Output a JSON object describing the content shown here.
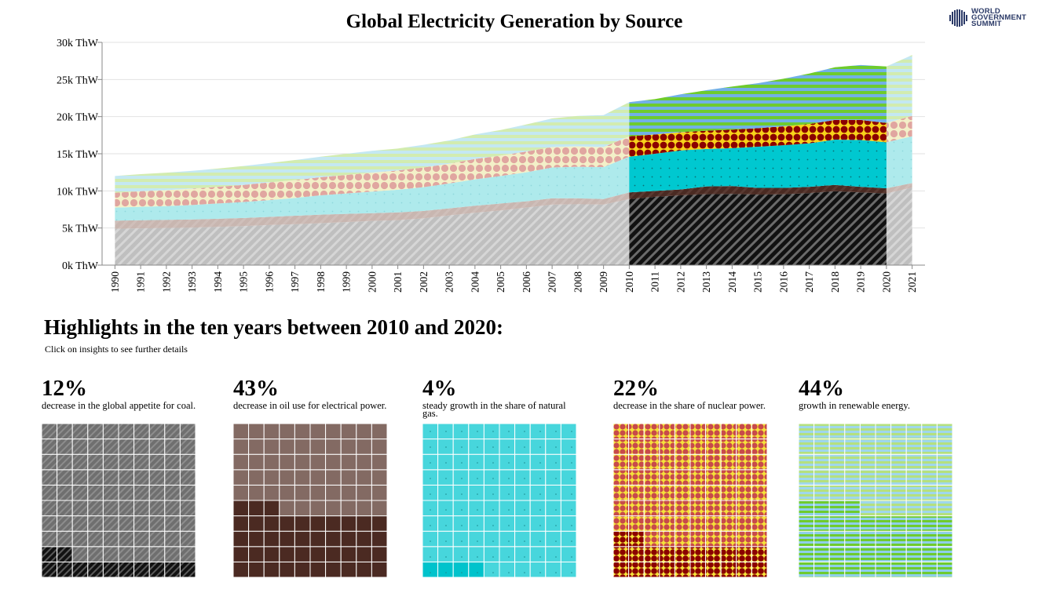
{
  "logo": {
    "lines": [
      "WORLD",
      "GOVERNMENT",
      "SUMMIT"
    ]
  },
  "chart_data": {
    "type": "area",
    "title": "Global Electricity Generation by Source",
    "x": [
      1990,
      1991,
      1992,
      1993,
      1994,
      1995,
      1996,
      1997,
      1998,
      1999,
      2000,
      2001,
      2002,
      2003,
      2004,
      2005,
      2006,
      2007,
      2008,
      2009,
      2010,
      2011,
      2012,
      2013,
      2014,
      2015,
      2016,
      2017,
      2018,
      2019,
      2020,
      2021
    ],
    "y_ticks": [
      "0k ThW",
      "5k ThW",
      "10k ThW",
      "15k ThW",
      "20k ThW",
      "25k ThW",
      "30k ThW"
    ],
    "ylim": [
      0,
      30000
    ],
    "highlight_range": [
      2010,
      2020
    ],
    "grid": true,
    "series": [
      {
        "name": "Coal",
        "color": "#bfbfbf",
        "highlight_color": "#111111",
        "values": [
          4900,
          4950,
          5000,
          5050,
          5150,
          5250,
          5400,
          5500,
          5650,
          5800,
          5950,
          6050,
          6300,
          6700,
          7050,
          7350,
          7750,
          8150,
          8200,
          8150,
          8900,
          9200,
          9400,
          9550,
          9600,
          9500,
          9550,
          9700,
          9950,
          9800,
          9650,
          10450
        ]
      },
      {
        "name": "Oil",
        "color": "#c8b6b0",
        "highlight_color": "#4a2a22",
        "values": [
          1100,
          1100,
          1100,
          1100,
          1100,
          1100,
          1100,
          1150,
          1150,
          1100,
          1050,
          1050,
          1000,
          950,
          950,
          950,
          850,
          850,
          800,
          750,
          900,
          800,
          800,
          1050,
          1050,
          900,
          850,
          850,
          850,
          750,
          700,
          600
        ]
      },
      {
        "name": "Natural Gas",
        "color": "#aeeaec",
        "highlight_color": "#00c8d0",
        "values": [
          1750,
          1800,
          1850,
          1950,
          2050,
          2150,
          2250,
          2400,
          2600,
          2750,
          2900,
          3050,
          3200,
          3350,
          3550,
          3700,
          3900,
          4150,
          4250,
          4300,
          4800,
          5000,
          5250,
          5050,
          5100,
          5550,
          5750,
          5850,
          6100,
          6300,
          6200,
          6300
        ]
      },
      {
        "name": "Nuclear",
        "color": "#e8c4c0",
        "highlight_color": "#8b0000",
        "values": [
          2000,
          2100,
          2150,
          2200,
          2250,
          2300,
          2400,
          2400,
          2450,
          2500,
          2550,
          2600,
          2650,
          2650,
          2750,
          2750,
          2800,
          2750,
          2750,
          2700,
          2750,
          2600,
          2450,
          2450,
          2500,
          2500,
          2550,
          2600,
          2650,
          2700,
          2600,
          2750
        ]
      },
      {
        "name": "Renewables",
        "color": "#cfeaa0",
        "highlight_color": "#6ecb2e",
        "values": [
          2250,
          2300,
          2350,
          2400,
          2450,
          2550,
          2600,
          2700,
          2750,
          2850,
          2950,
          2950,
          3050,
          3150,
          3300,
          3450,
          3650,
          3850,
          4100,
          4300,
          4600,
          4750,
          5100,
          5450,
          5800,
          6050,
          6400,
          6800,
          7100,
          7400,
          7600,
          8200
        ]
      }
    ]
  },
  "highlights": {
    "title": "Highlights in the ten years between 2010 and 2020:",
    "subtitle": "Click on insights to see further details",
    "insights": [
      {
        "value": "12%",
        "description": "decrease in the global appetite for coal.",
        "series": "Coal",
        "waffle_filled": 12,
        "base": "#6f6f6f",
        "filled": "#1a1a1a"
      },
      {
        "value": "43%",
        "description": "decrease in oil use for electrical power.",
        "series": "Oil",
        "waffle_filled": 43,
        "base": "#836a63",
        "filled": "#4b2a22"
      },
      {
        "value": "4%",
        "description": "steady growth in the share of natural gas.",
        "series": "Natural Gas",
        "waffle_filled": 4,
        "base": "#47d6dc",
        "filled": "#00c3cc"
      },
      {
        "value": "22%",
        "description": "decrease in the share of nuclear power.",
        "series": "Nuclear",
        "waffle_filled": 22,
        "base": "#c84a4a",
        "filled": "#8b0000"
      },
      {
        "value": "44%",
        "description": "growth in renewable energy.",
        "series": "Renewables",
        "waffle_filled": 44,
        "base": "#9fd7ec",
        "filled": "#6ecb2e"
      }
    ]
  }
}
